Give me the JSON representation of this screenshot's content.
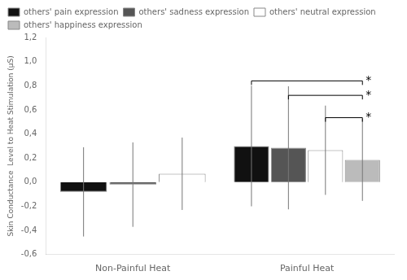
{
  "chart_data": {
    "type": "bar",
    "categories": [
      "Non-Painful Heat",
      "Painful Heat"
    ],
    "series": [
      {
        "name": "others' pain expression",
        "color": "#111111",
        "values": [
          -0.08,
          0.3
        ],
        "errors": [
          0.37,
          0.5
        ]
      },
      {
        "name": "others' sadness expression",
        "color": "#555555",
        "values": [
          -0.02,
          0.285
        ],
        "errors": [
          0.35,
          0.51
        ]
      },
      {
        "name": "others' neutral expression",
        "color": "#ffffff",
        "values": [
          0.07,
          0.265
        ],
        "errors": [
          0.3,
          0.37
        ]
      },
      {
        "name": "others' happiness expression",
        "color": "#bbbbbb",
        "values": [
          null,
          0.185
        ],
        "errors": [
          null,
          0.34
        ]
      }
    ],
    "ylabel": "Skin Conductance  Level to Heat Stimulation (μS)",
    "ylim": [
      -0.6,
      1.2
    ],
    "yticks": [
      {
        "value": -0.6,
        "label": "-0,6"
      },
      {
        "value": -0.4,
        "label": "-0,4"
      },
      {
        "value": -0.2,
        "label": "-0,2"
      },
      {
        "value": 0.0,
        "label": "0,0"
      },
      {
        "value": 0.2,
        "label": "0,2"
      },
      {
        "value": 0.4,
        "label": "0,4"
      },
      {
        "value": 0.6,
        "label": "0,6"
      },
      {
        "value": 0.8,
        "label": "0,8"
      },
      {
        "value": 1.0,
        "label": "1,0"
      },
      {
        "value": 1.2,
        "label": "1,2"
      }
    ],
    "grid": false,
    "legend": "upper left",
    "annotations": [
      {
        "text": "*",
        "group": "Painful Heat",
        "from": "others' pain expression",
        "to": "others' happiness expression",
        "y": 0.84
      },
      {
        "text": "*",
        "group": "Painful Heat",
        "from": "others' sadness expression",
        "to": "others' happiness expression",
        "y": 0.72
      },
      {
        "text": "*",
        "group": "Painful Heat",
        "from": "others' neutral expression",
        "to": "others' happiness expression",
        "y": 0.535
      }
    ]
  }
}
